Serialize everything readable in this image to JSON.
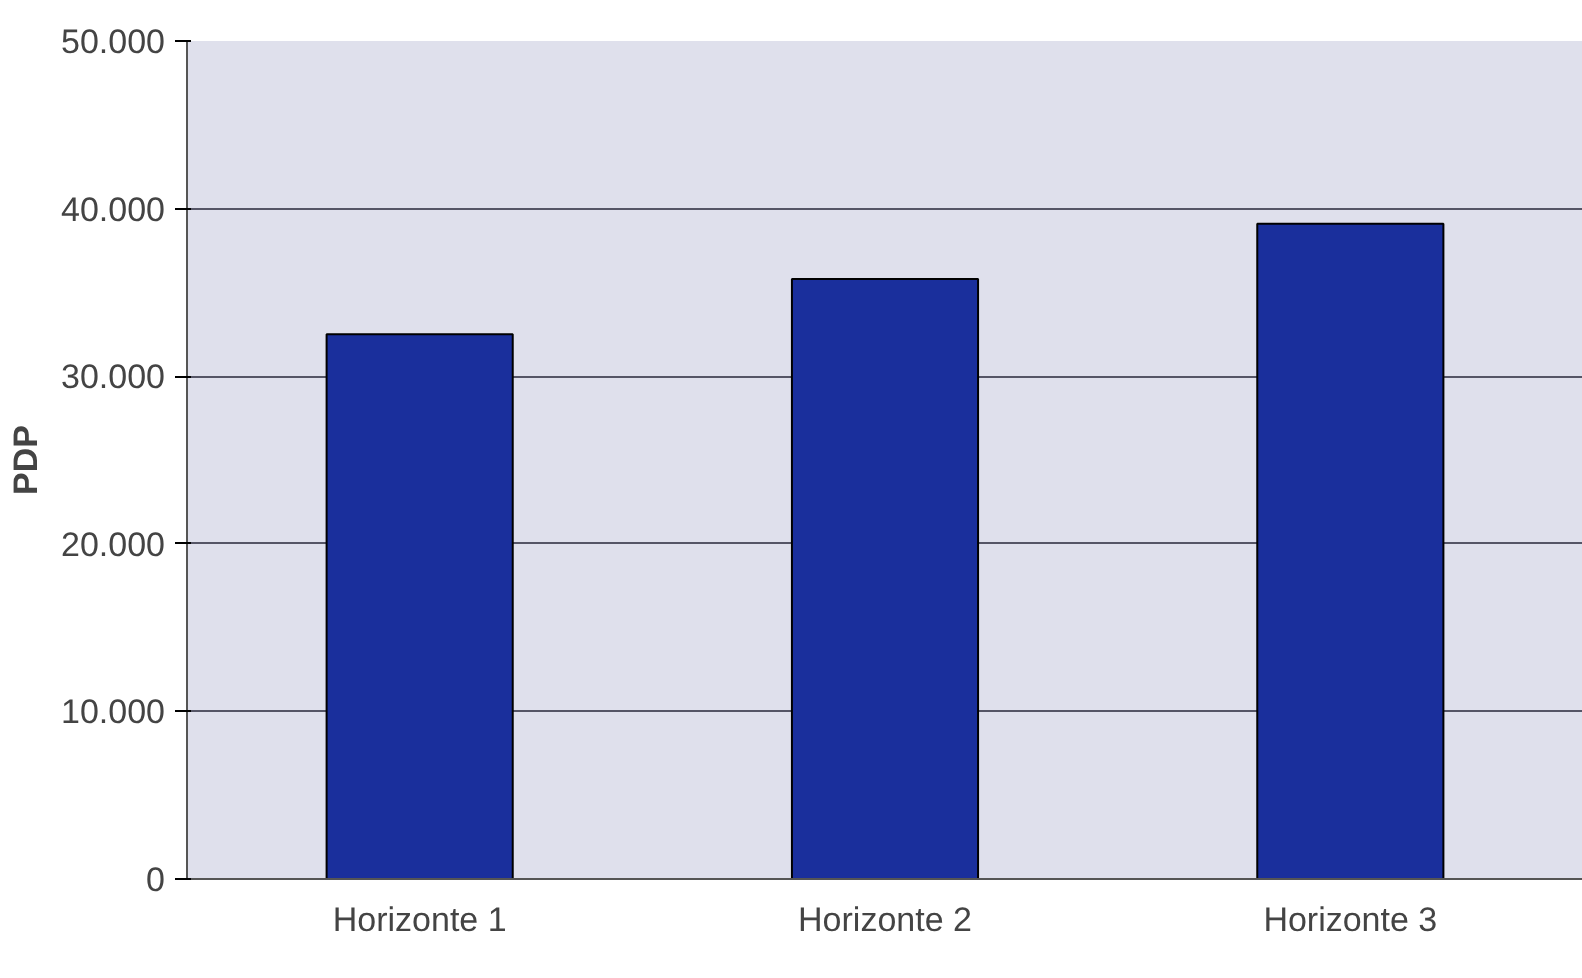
{
  "chart_data": {
    "type": "bar",
    "ylabel": "PDP",
    "categories": [
      "Horizonte 1",
      "Horizonte 2",
      "Horizonte 3"
    ],
    "values": [
      32500,
      35800,
      39100
    ],
    "color": "#1a2f9c",
    "ylim": [
      0,
      50000
    ],
    "yticks": [
      {
        "value": 0,
        "label": "0"
      },
      {
        "value": 10000,
        "label": "10.000"
      },
      {
        "value": 20000,
        "label": "20.000"
      },
      {
        "value": 30000,
        "label": "30.000"
      },
      {
        "value": 40000,
        "label": "40.000"
      },
      {
        "value": 50000,
        "label": "50.000"
      }
    ],
    "grid": "y"
  }
}
